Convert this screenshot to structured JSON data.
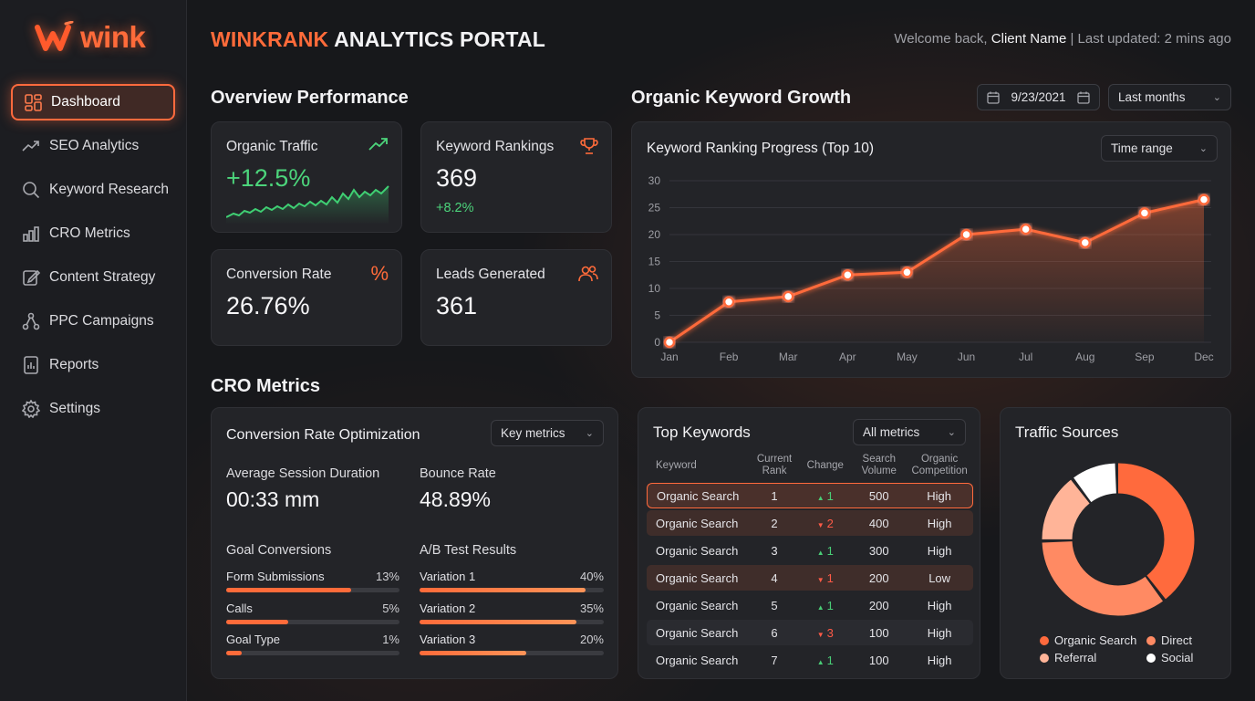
{
  "brand": {
    "logo_text": "wink"
  },
  "sidebar": {
    "items": [
      {
        "label": "Dashboard",
        "icon": "dashboard-icon"
      },
      {
        "label": "SEO Analytics",
        "icon": "trend-icon"
      },
      {
        "label": "Keyword Research",
        "icon": "search-icon"
      },
      {
        "label": "CRO Metrics",
        "icon": "bar-chart-icon"
      },
      {
        "label": "Content Strategy",
        "icon": "edit-icon"
      },
      {
        "label": "PPC Campaigns",
        "icon": "network-icon"
      },
      {
        "label": "Reports",
        "icon": "report-icon"
      },
      {
        "label": "Settings",
        "icon": "gear-icon"
      }
    ],
    "active_index": 0
  },
  "header": {
    "brand": "WINKRANK",
    "title_rest": " ANALYTICS PORTAL",
    "welcome": "Welcome back, ",
    "client": "Client Name",
    "updated": " | Last updated: 2 mins ago"
  },
  "overview": {
    "title": "Overview Performance",
    "cards": {
      "organic": {
        "label": "Organic Traffic",
        "value": "+12.5%"
      },
      "rankings": {
        "label": "Keyword Rankings",
        "value": "369",
        "delta": "+8.2%"
      },
      "conversion": {
        "label": "Conversion Rate",
        "value": "26.76%"
      },
      "leads": {
        "label": "Leads Generated",
        "value": "361"
      }
    }
  },
  "growth": {
    "title": "Organic Keyword Growth",
    "date": "9/23/2021",
    "period": "Last months",
    "chart_title": "Keyword Ranking Progress (Top 10)",
    "range_label": "Time range"
  },
  "chart_data": {
    "type": "line",
    "title": "Keyword Ranking Progress (Top 10)",
    "categories": [
      "Jan",
      "Feb",
      "Mar",
      "Apr",
      "May",
      "Jun",
      "Jul",
      "Aug",
      "Sep",
      "Dec"
    ],
    "values": [
      0,
      7.5,
      8.5,
      12.5,
      13,
      20,
      21,
      18.5,
      24,
      26.5
    ],
    "yticks": [
      0,
      5,
      10,
      15,
      20,
      25,
      30
    ],
    "ylim": [
      0,
      30
    ],
    "grid": true,
    "color": "#ff6b3a"
  },
  "cro": {
    "section_title": "CRO Metrics",
    "card_title": "Conversion Rate Optimization",
    "dropdown": "Key metrics",
    "session_label": "Average Session Duration",
    "session_value": "00:33 mm",
    "bounce_label": "Bounce Rate",
    "bounce_value": "48.89%",
    "goals_title": "Goal Conversions",
    "goals": [
      {
        "label": "Form Submissions",
        "pct": "13%",
        "fill": 0.72
      },
      {
        "label": "Calls",
        "pct": "5%",
        "fill": 0.36
      },
      {
        "label": "Goal Type",
        "pct": "1%",
        "fill": 0.09
      }
    ],
    "ab_title": "A/B Test Results",
    "ab": [
      {
        "label": "Variation 1",
        "pct": "40%",
        "fill": 0.9
      },
      {
        "label": "Variation 2",
        "pct": "35%",
        "fill": 0.85
      },
      {
        "label": "Variation 3",
        "pct": "20%",
        "fill": 0.58
      }
    ]
  },
  "keywords": {
    "title": "Top Keywords",
    "dropdown": "All metrics",
    "columns": [
      "Keyword",
      "Current Rank",
      "Change",
      "Search Volume",
      "Organic Competition"
    ],
    "rows": [
      {
        "keyword": "Organic Search",
        "rank": "1",
        "dir": "up",
        "change": "1",
        "volume": "500",
        "competition": "High"
      },
      {
        "keyword": "Organic Search",
        "rank": "2",
        "dir": "down",
        "change": "2",
        "volume": "400",
        "competition": "High"
      },
      {
        "keyword": "Organic Search",
        "rank": "3",
        "dir": "up",
        "change": "1",
        "volume": "300",
        "competition": "High"
      },
      {
        "keyword": "Organic Search",
        "rank": "4",
        "dir": "down",
        "change": "1",
        "volume": "200",
        "competition": "Low"
      },
      {
        "keyword": "Organic Search",
        "rank": "5",
        "dir": "up",
        "change": "1",
        "volume": "200",
        "competition": "High"
      },
      {
        "keyword": "Organic Search",
        "rank": "6",
        "dir": "down",
        "change": "3",
        "volume": "100",
        "competition": "High"
      },
      {
        "keyword": "Organic Search",
        "rank": "7",
        "dir": "up",
        "change": "1",
        "volume": "100",
        "competition": "High"
      }
    ]
  },
  "traffic": {
    "title": "Traffic Sources",
    "slices": [
      {
        "name": "Organic Search",
        "value": 0.4,
        "color": "#ff6a3d"
      },
      {
        "name": "Direct",
        "value": 0.35,
        "color": "#ff8a63"
      },
      {
        "name": "Referral",
        "value": 0.15,
        "color": "#ffb498"
      },
      {
        "name": "Social",
        "value": 0.1,
        "color": "#ffffff"
      }
    ]
  }
}
